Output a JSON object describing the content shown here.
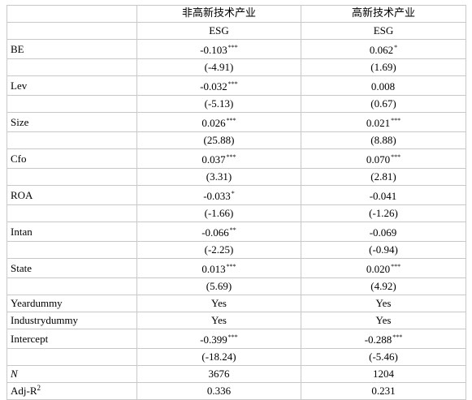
{
  "header": {
    "group_left": "非高新技术产业",
    "group_right": "高新技术产业",
    "dep_left": "ESG",
    "dep_right": "ESG"
  },
  "rows": [
    {
      "id": "be",
      "label": "BE",
      "coef_l": "-0.103",
      "star_l": "***",
      "coef_r": "0.062",
      "star_r": "*",
      "t_l": "(-4.91)",
      "t_r": "(1.69)"
    },
    {
      "id": "lev",
      "label": "Lev",
      "coef_l": "-0.032",
      "star_l": "***",
      "coef_r": "0.008",
      "star_r": "",
      "t_l": "(-5.13)",
      "t_r": "(0.67)"
    },
    {
      "id": "size",
      "label": "Size",
      "coef_l": "0.026",
      "star_l": "***",
      "coef_r": "0.021",
      "star_r": "***",
      "t_l": "(25.88)",
      "t_r": "(8.88)"
    },
    {
      "id": "cfo",
      "label": "Cfo",
      "coef_l": "0.037",
      "star_l": "***",
      "coef_r": "0.070",
      "star_r": "***",
      "t_l": "(3.31)",
      "t_r": "(2.81)"
    },
    {
      "id": "roa",
      "label": "ROA",
      "coef_l": "-0.033",
      "star_l": "*",
      "coef_r": "-0.041",
      "star_r": "",
      "t_l": "(-1.66)",
      "t_r": "(-1.26)"
    },
    {
      "id": "intan",
      "label": "Intan",
      "coef_l": "-0.066",
      "star_l": "**",
      "coef_r": "-0.069",
      "star_r": "",
      "t_l": "(-2.25)",
      "t_r": "(-0.94)"
    },
    {
      "id": "state",
      "label": "State",
      "coef_l": "0.013",
      "star_l": "***",
      "coef_r": "0.020",
      "star_r": "***",
      "t_l": "(5.69)",
      "t_r": "(4.92)"
    }
  ],
  "dummies": [
    {
      "id": "yeardummy",
      "label": "Yeardummy",
      "left": "Yes",
      "right": "Yes"
    },
    {
      "id": "industrydummy",
      "label": "Industrydummy",
      "left": "Yes",
      "right": "Yes"
    }
  ],
  "intercept": {
    "label": "Intercept",
    "coef_l": "-0.399",
    "star_l": "***",
    "coef_r": "-0.288",
    "star_r": "***",
    "t_l": "(-18.24)",
    "t_r": "(-5.46)"
  },
  "n": {
    "label": "N",
    "left": "3676",
    "right": "1204"
  },
  "adj_r2": {
    "label": "Adj-R",
    "label_sup": "2",
    "left": "0.336",
    "right": "0.231"
  }
}
